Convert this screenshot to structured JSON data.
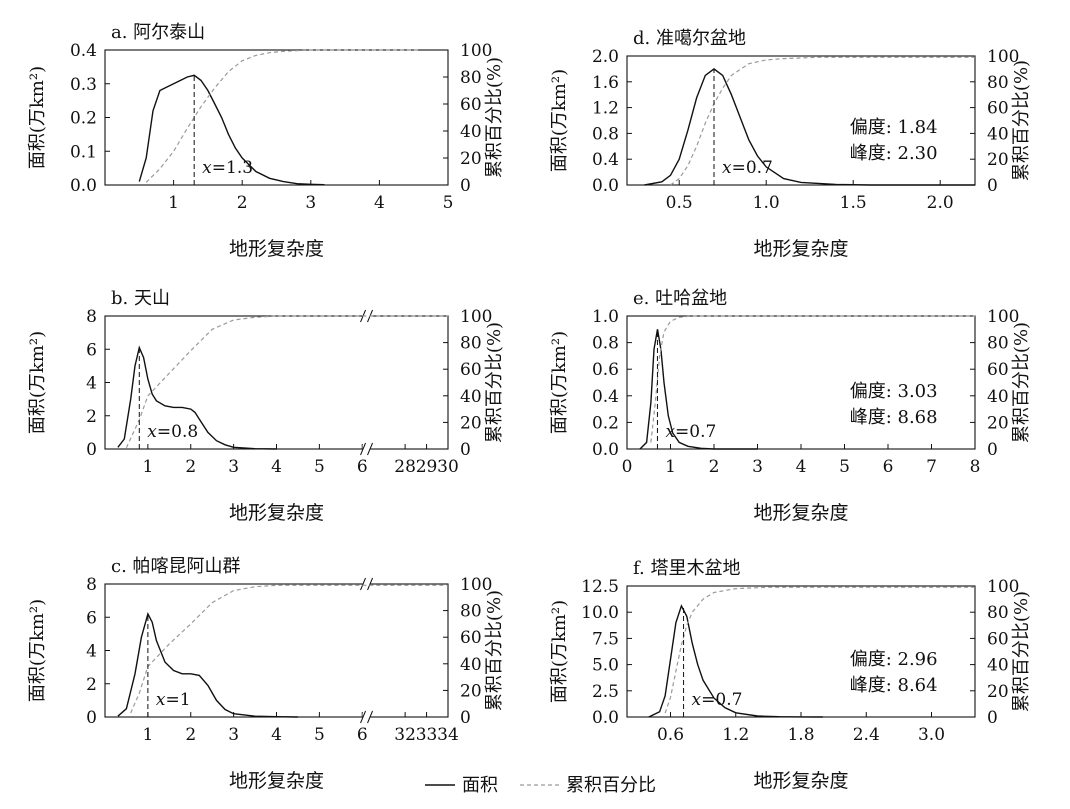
{
  "legend": {
    "area_label": "面积",
    "cum_label": "累积百分比"
  },
  "chart_data": [
    {
      "id": "a",
      "type": "line",
      "title": "a. 阿尔泰山",
      "xlabel": "地形复杂度",
      "ylabel": "面积(万km²)",
      "y2label": "累积百分比(%)",
      "xlim": [
        0,
        5
      ],
      "ylim": [
        0,
        0.4
      ],
      "y2lim": [
        0,
        100
      ],
      "xticks": [
        "1",
        "2",
        "3",
        "4",
        "5"
      ],
      "xtick_values": [
        1,
        2,
        3,
        4,
        5
      ],
      "yticks": [
        "0.0",
        "0.1",
        "0.2",
        "0.3",
        "0.4"
      ],
      "ytick_values": [
        0,
        0.1,
        0.2,
        0.3,
        0.4
      ],
      "y2ticks": [
        "0",
        "20",
        "40",
        "60",
        "80",
        "100"
      ],
      "y2tick_values": [
        0,
        20,
        40,
        60,
        80,
        100
      ],
      "series": [
        {
          "name": "面积",
          "x": [
            0.5,
            0.6,
            0.7,
            0.8,
            0.9,
            1.0,
            1.1,
            1.2,
            1.3,
            1.4,
            1.5,
            1.6,
            1.7,
            1.8,
            1.9,
            2.0,
            2.2,
            2.4,
            2.6,
            2.8,
            3.0,
            3.2
          ],
          "y": [
            0.01,
            0.08,
            0.22,
            0.28,
            0.29,
            0.3,
            0.31,
            0.32,
            0.325,
            0.31,
            0.28,
            0.24,
            0.2,
            0.15,
            0.11,
            0.08,
            0.04,
            0.02,
            0.01,
            0.004,
            0.002,
            0.001
          ]
        },
        {
          "name": "累积百分比",
          "x": [
            0.6,
            0.8,
            1.0,
            1.2,
            1.4,
            1.6,
            1.8,
            2.0,
            2.2,
            2.4,
            2.6,
            3.0,
            4.6
          ],
          "y": [
            2,
            12,
            25,
            42,
            58,
            72,
            84,
            92,
            96,
            98,
            99,
            100,
            100
          ]
        }
      ],
      "marker": {
        "x": 1.3,
        "label_prefix": "x",
        "label_suffix": "=1.3"
      },
      "stats": null
    },
    {
      "id": "d",
      "type": "line",
      "title": "d. 准噶尔盆地",
      "xlabel": "地形复杂度",
      "ylabel": "面积(万km²)",
      "y2label": "累积百分比(%)",
      "xlim": [
        0.2,
        2.2
      ],
      "ylim": [
        0,
        2.0
      ],
      "y2lim": [
        0,
        100
      ],
      "xticks": [
        "0.5",
        "1.0",
        "1.5",
        "2.0"
      ],
      "xtick_values": [
        0.5,
        1.0,
        1.5,
        2.0
      ],
      "yticks": [
        "0.0",
        "0.4",
        "0.8",
        "1.2",
        "1.6",
        "2.0"
      ],
      "ytick_values": [
        0,
        0.4,
        0.8,
        1.2,
        1.6,
        2.0
      ],
      "y2ticks": [
        "0",
        "20",
        "40",
        "60",
        "80",
        "100"
      ],
      "y2tick_values": [
        0,
        20,
        40,
        60,
        80,
        100
      ],
      "series": [
        {
          "name": "面积",
          "x": [
            0.3,
            0.4,
            0.45,
            0.5,
            0.55,
            0.6,
            0.65,
            0.7,
            0.75,
            0.8,
            0.85,
            0.9,
            0.95,
            1.0,
            1.1,
            1.2,
            1.4,
            1.6,
            2.2
          ],
          "y": [
            0.0,
            0.05,
            0.15,
            0.4,
            0.85,
            1.35,
            1.7,
            1.8,
            1.7,
            1.4,
            1.05,
            0.7,
            0.45,
            0.28,
            0.1,
            0.04,
            0.01,
            0.0,
            0.0
          ]
        },
        {
          "name": "累积百分比",
          "x": [
            0.45,
            0.5,
            0.55,
            0.6,
            0.65,
            0.7,
            0.75,
            0.8,
            0.9,
            1.0,
            1.1,
            1.3,
            2.2
          ],
          "y": [
            0,
            5,
            15,
            30,
            48,
            63,
            75,
            85,
            94,
            97,
            98,
            99,
            99
          ]
        }
      ],
      "marker": {
        "x": 0.7,
        "label_prefix": "x",
        "label_suffix": "=0.7"
      },
      "stats": {
        "skew": "偏度: 1.84",
        "kurt": "峰度: 2.30"
      }
    },
    {
      "id": "b",
      "type": "line",
      "title": "b. 天山",
      "xlabel": "地形复杂度",
      "ylabel": "面积(万km²)",
      "y2label": "累积百分比(%)",
      "xlim": [
        0,
        30
      ],
      "ylim": [
        0,
        8
      ],
      "y2lim": [
        0,
        100
      ],
      "xticks": [
        "1",
        "2",
        "3",
        "4",
        "5",
        "6",
        "28",
        "29",
        "30"
      ],
      "xtick_pos": [
        1,
        2,
        3,
        4,
        5,
        6,
        7,
        7.5,
        8
      ],
      "yticks": [
        "0",
        "2",
        "4",
        "6",
        "8"
      ],
      "ytick_values": [
        0,
        2,
        4,
        6,
        8
      ],
      "y2ticks": [
        "0",
        "20",
        "40",
        "60",
        "80",
        "100"
      ],
      "y2tick_values": [
        0,
        20,
        40,
        60,
        80,
        100
      ],
      "break_pos": 6.1,
      "series": [
        {
          "name": "面积",
          "x": [
            0.3,
            0.45,
            0.6,
            0.7,
            0.8,
            0.9,
            1.0,
            1.1,
            1.2,
            1.4,
            1.6,
            1.8,
            2.0,
            2.1,
            2.2,
            2.4,
            2.6,
            2.8,
            3.0,
            3.5,
            4.0
          ],
          "y": [
            0.1,
            0.6,
            3.0,
            5.0,
            6.1,
            5.5,
            4.2,
            3.3,
            2.9,
            2.6,
            2.5,
            2.5,
            2.4,
            2.2,
            1.8,
            1.0,
            0.5,
            0.25,
            0.1,
            0.02,
            0.0
          ]
        },
        {
          "name": "累积百分比",
          "x": [
            0.5,
            0.8,
            1.0,
            1.5,
            2.0,
            2.5,
            3.0,
            3.5,
            4.0,
            8.0
          ],
          "y": [
            1,
            22,
            40,
            57,
            74,
            90,
            97,
            99,
            100,
            100
          ]
        }
      ],
      "marker": {
        "x": 0.8,
        "label_prefix": "x",
        "label_suffix": "=0.8"
      },
      "stats": null
    },
    {
      "id": "e",
      "type": "line",
      "title": "e. 吐哈盆地",
      "xlabel": "地形复杂度",
      "ylabel": "面积(万km²)",
      "y2label": "累积百分比(%)",
      "xlim": [
        0,
        8
      ],
      "ylim": [
        0,
        1.0
      ],
      "y2lim": [
        0,
        100
      ],
      "xticks": [
        "0",
        "1",
        "2",
        "3",
        "4",
        "5",
        "6",
        "7",
        "8"
      ],
      "xtick_values": [
        0,
        1,
        2,
        3,
        4,
        5,
        6,
        7,
        8
      ],
      "yticks": [
        "0.0",
        "0.2",
        "0.4",
        "0.6",
        "0.8",
        "1.0"
      ],
      "ytick_values": [
        0,
        0.2,
        0.4,
        0.6,
        0.8,
        1.0
      ],
      "y2ticks": [
        "0",
        "20",
        "40",
        "60",
        "80",
        "100"
      ],
      "y2tick_values": [
        0,
        20,
        40,
        60,
        80,
        100
      ],
      "series": [
        {
          "name": "面积",
          "x": [
            0.3,
            0.45,
            0.55,
            0.62,
            0.7,
            0.78,
            0.85,
            0.95,
            1.05,
            1.2,
            1.4,
            1.7,
            2.0,
            3.0
          ],
          "y": [
            0.0,
            0.05,
            0.35,
            0.75,
            0.9,
            0.75,
            0.5,
            0.25,
            0.12,
            0.05,
            0.02,
            0.005,
            0.0,
            0.0
          ]
        },
        {
          "name": "累积百分比",
          "x": [
            0.55,
            0.65,
            0.75,
            0.85,
            1.0,
            1.2,
            1.5,
            2.0,
            8.0
          ],
          "y": [
            5,
            35,
            70,
            88,
            96,
            99,
            100,
            100,
            100
          ]
        }
      ],
      "marker": {
        "x": 0.7,
        "label_prefix": "x",
        "label_suffix": "=0.7"
      },
      "stats": {
        "skew": "偏度: 3.03",
        "kurt": "峰度: 8.68"
      }
    },
    {
      "id": "c",
      "type": "line",
      "title": "c. 帕喀昆阿山群",
      "xlabel": "地形复杂度",
      "ylabel": "面积(万km²)",
      "y2label": "累积百分比(%)",
      "xlim": [
        0,
        34
      ],
      "ylim": [
        0,
        8
      ],
      "y2lim": [
        0,
        100
      ],
      "xticks": [
        "1",
        "2",
        "3",
        "4",
        "5",
        "6",
        "32",
        "33",
        "34"
      ],
      "xtick_pos": [
        1,
        2,
        3,
        4,
        5,
        6,
        7,
        7.5,
        8
      ],
      "yticks": [
        "0",
        "2",
        "4",
        "6",
        "8"
      ],
      "ytick_values": [
        0,
        2,
        4,
        6,
        8
      ],
      "y2ticks": [
        "0",
        "20",
        "40",
        "60",
        "80",
        "100"
      ],
      "y2tick_values": [
        0,
        20,
        40,
        60,
        80,
        100
      ],
      "break_pos": 6.1,
      "series": [
        {
          "name": "面积",
          "x": [
            0.3,
            0.5,
            0.7,
            0.85,
            1.0,
            1.1,
            1.2,
            1.4,
            1.6,
            1.8,
            2.0,
            2.2,
            2.4,
            2.6,
            2.8,
            3.0,
            3.5,
            4.0,
            4.5
          ],
          "y": [
            0.05,
            0.5,
            2.6,
            4.8,
            6.2,
            5.7,
            4.6,
            3.3,
            2.8,
            2.6,
            2.6,
            2.5,
            1.9,
            1.0,
            0.45,
            0.2,
            0.05,
            0.02,
            0.0
          ]
        },
        {
          "name": "累积百分比",
          "x": [
            0.6,
            0.8,
            1.0,
            1.5,
            2.0,
            2.5,
            3.0,
            3.5,
            4.0,
            5.0,
            8.0
          ],
          "y": [
            3,
            18,
            38,
            55,
            70,
            86,
            95,
            98,
            99,
            99,
            99
          ]
        }
      ],
      "marker": {
        "x": 1.0,
        "label_prefix": "x",
        "label_suffix": "=1"
      },
      "stats": null
    },
    {
      "id": "f",
      "type": "line",
      "title": "f. 塔里木盆地",
      "xlabel": "地形复杂度",
      "ylabel": "面积(万km²)",
      "y2label": "累积百分比(%)",
      "xlim": [
        0.2,
        3.4
      ],
      "ylim": [
        0,
        12.5
      ],
      "y2lim": [
        0,
        100
      ],
      "xticks": [
        "0.6",
        "1.2",
        "1.8",
        "2.4",
        "3.0"
      ],
      "xtick_values": [
        0.6,
        1.2,
        1.8,
        2.4,
        3.0
      ],
      "yticks": [
        "0.0",
        "2.5",
        "5.0",
        "7.5",
        "10.0",
        "12.5"
      ],
      "ytick_values": [
        0,
        2.5,
        5.0,
        7.5,
        10.0,
        12.5
      ],
      "y2ticks": [
        "0",
        "20",
        "40",
        "60",
        "80",
        "100"
      ],
      "y2tick_values": [
        0,
        20,
        40,
        60,
        80,
        100
      ],
      "series": [
        {
          "name": "面积",
          "x": [
            0.4,
            0.5,
            0.55,
            0.6,
            0.65,
            0.7,
            0.75,
            0.8,
            0.85,
            0.9,
            1.0,
            1.1,
            1.2,
            1.4,
            1.6,
            1.8,
            2.0
          ],
          "y": [
            0.0,
            0.5,
            2.0,
            5.5,
            9.0,
            10.6,
            9.6,
            7.0,
            5.0,
            3.5,
            1.8,
            0.9,
            0.4,
            0.1,
            0.03,
            0.01,
            0.0
          ]
        },
        {
          "name": "累积百分比",
          "x": [
            0.55,
            0.6,
            0.65,
            0.7,
            0.75,
            0.8,
            0.9,
            1.0,
            1.2,
            1.5,
            3.4
          ],
          "y": [
            3,
            15,
            35,
            55,
            70,
            80,
            90,
            95,
            98,
            99,
            99
          ]
        }
      ],
      "marker": {
        "x": 0.72,
        "label_prefix": "x",
        "label_suffix": "=0.7"
      },
      "stats": {
        "skew": "偏度: 2.96",
        "kurt": "峰度: 8.64"
      }
    }
  ]
}
